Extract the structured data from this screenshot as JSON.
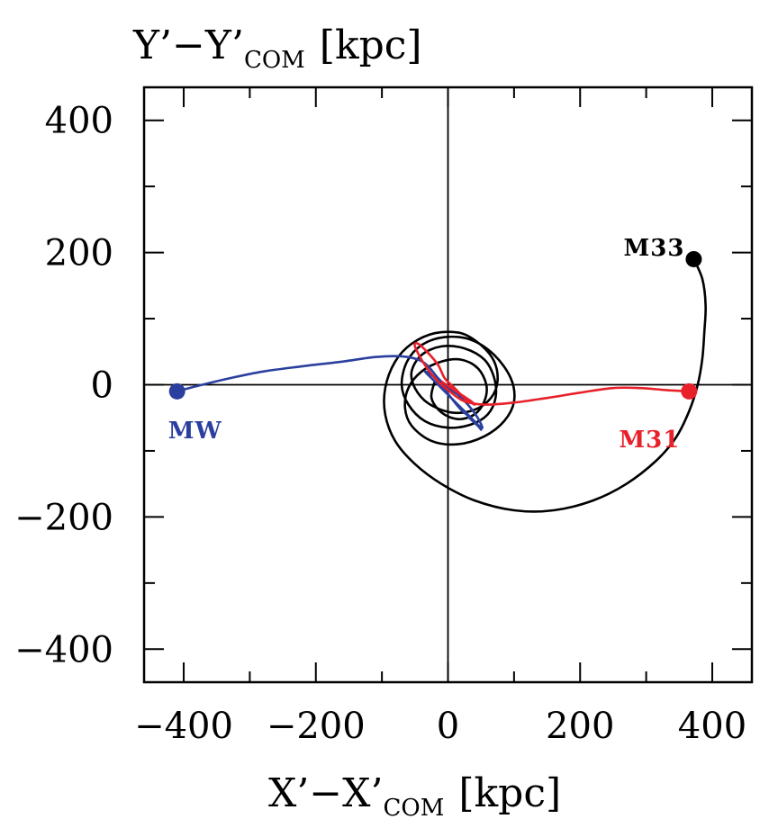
{
  "chart_data": {
    "type": "line",
    "xlabel_main": "X’−X’",
    "xlabel_sub": "COM",
    "xlabel_unit": "[kpc]",
    "ylabel_main": "Y’−Y’",
    "ylabel_sub": "COM",
    "ylabel_unit": "[kpc]",
    "xlim": [
      -460,
      460
    ],
    "ylim": [
      -450,
      450
    ],
    "xticks": [
      -400,
      -200,
      0,
      200,
      400
    ],
    "yticks": [
      -400,
      -200,
      0,
      200,
      400
    ],
    "xtick_labels": [
      "−400",
      "−200",
      "0",
      "200",
      "400"
    ],
    "ytick_labels": [
      "−400",
      "−200",
      "0",
      "200",
      "400"
    ],
    "zero_lines": true,
    "series": [
      {
        "name": "MW",
        "color": "#2b3f9e",
        "start": [
          -410,
          -10
        ],
        "points": [
          [
            -410,
            -10
          ],
          [
            -380,
            -2
          ],
          [
            -330,
            10
          ],
          [
            -280,
            20
          ],
          [
            -220,
            28
          ],
          [
            -160,
            35
          ],
          [
            -110,
            42
          ],
          [
            -70,
            43
          ],
          [
            -45,
            38
          ],
          [
            -30,
            28
          ],
          [
            -15,
            10
          ],
          [
            0,
            -5
          ],
          [
            15,
            -15
          ],
          [
            30,
            -30
          ],
          [
            45,
            -50
          ],
          [
            52,
            -65
          ],
          [
            45,
            -60
          ],
          [
            30,
            -45
          ],
          [
            10,
            -25
          ],
          [
            -10,
            -5
          ],
          [
            -25,
            10
          ],
          [
            -35,
            20
          ],
          [
            -25,
            15
          ],
          [
            -10,
            0
          ],
          [
            5,
            -20
          ],
          [
            20,
            -38
          ],
          [
            40,
            -55
          ],
          [
            50,
            -68
          ],
          [
            45,
            -62
          ],
          [
            30,
            -48
          ]
        ]
      },
      {
        "name": "M31",
        "color": "#e8202a",
        "start": [
          365,
          -10
        ],
        "points": [
          [
            365,
            -10
          ],
          [
            330,
            -8
          ],
          [
            290,
            -5
          ],
          [
            250,
            -5
          ],
          [
            200,
            -12
          ],
          [
            150,
            -20
          ],
          [
            100,
            -27
          ],
          [
            55,
            -30
          ],
          [
            25,
            -25
          ],
          [
            5,
            -12
          ],
          [
            -15,
            5
          ],
          [
            -35,
            30
          ],
          [
            -50,
            58
          ],
          [
            -45,
            62
          ],
          [
            -30,
            48
          ],
          [
            -15,
            30
          ],
          [
            -5,
            10
          ],
          [
            10,
            -5
          ],
          [
            25,
            -20
          ],
          [
            40,
            -30
          ],
          [
            35,
            -25
          ],
          [
            20,
            -15
          ],
          [
            5,
            -5
          ],
          [
            -10,
            5
          ]
        ]
      },
      {
        "name": "M33",
        "color": "#000000",
        "start": [
          372,
          190
        ],
        "points": [
          [
            372,
            190
          ],
          [
            385,
            160
          ],
          [
            390,
            120
          ],
          [
            388,
            80
          ],
          [
            385,
            40
          ],
          [
            378,
            0
          ],
          [
            365,
            -40
          ],
          [
            345,
            -80
          ],
          [
            315,
            -115
          ],
          [
            270,
            -150
          ],
          [
            220,
            -175
          ],
          [
            160,
            -190
          ],
          [
            100,
            -190
          ],
          [
            40,
            -175
          ],
          [
            -10,
            -150
          ],
          [
            -50,
            -120
          ],
          [
            -80,
            -85
          ],
          [
            -95,
            -45
          ],
          [
            -95,
            -5
          ],
          [
            -80,
            35
          ],
          [
            -55,
            62
          ],
          [
            -20,
            78
          ],
          [
            20,
            78
          ],
          [
            50,
            60
          ],
          [
            70,
            35
          ],
          [
            75,
            5
          ],
          [
            65,
            -20
          ],
          [
            40,
            -38
          ],
          [
            5,
            -42
          ],
          [
            -30,
            -28
          ],
          [
            -50,
            -5
          ],
          [
            -55,
            20
          ],
          [
            -40,
            45
          ],
          [
            -10,
            58
          ],
          [
            25,
            55
          ],
          [
            55,
            38
          ],
          [
            70,
            10
          ],
          [
            72,
            -20
          ],
          [
            60,
            -45
          ],
          [
            35,
            -60
          ],
          [
            0,
            -65
          ],
          [
            -35,
            -55
          ],
          [
            -60,
            -30
          ],
          [
            -70,
            0
          ],
          [
            -62,
            35
          ],
          [
            -40,
            60
          ],
          [
            -5,
            72
          ],
          [
            35,
            68
          ],
          [
            70,
            45
          ],
          [
            95,
            10
          ],
          [
            100,
            -25
          ],
          [
            85,
            -55
          ],
          [
            55,
            -78
          ],
          [
            15,
            -90
          ],
          [
            -25,
            -85
          ],
          [
            -55,
            -62
          ],
          [
            -65,
            -35
          ],
          [
            -60,
            -5
          ],
          [
            -40,
            20
          ],
          [
            -10,
            35
          ],
          [
            20,
            38
          ],
          [
            45,
            25
          ],
          [
            58,
            0
          ],
          [
            55,
            -25
          ],
          [
            40,
            -45
          ],
          [
            15,
            -52
          ],
          [
            -10,
            -42
          ],
          [
            -25,
            -20
          ],
          [
            -20,
            5
          ]
        ]
      }
    ],
    "labels": [
      {
        "text": "MW",
        "series": "MW"
      },
      {
        "text": "M31",
        "series": "M31"
      },
      {
        "text": "M33",
        "series": "M33"
      }
    ]
  }
}
